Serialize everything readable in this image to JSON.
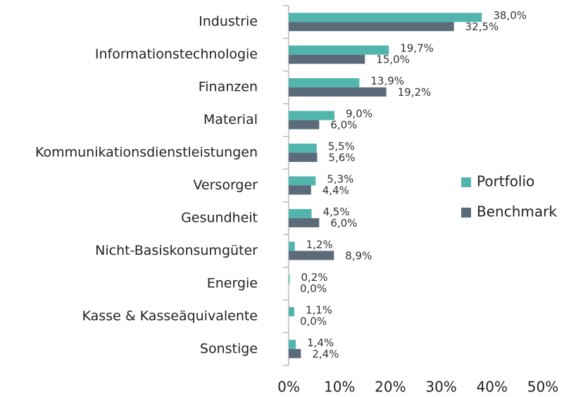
{
  "chart_data": {
    "type": "barh",
    "categories": [
      "Industrie",
      "Informationstechnologie",
      "Finanzen",
      "Material",
      "Kommunikationsdienstleistungen",
      "Versorger",
      "Gesundheit",
      "Nicht-Basiskonsumgüter",
      "Energie",
      "Kasse & Kasseäquivalente",
      "Sonstige"
    ],
    "series": [
      {
        "name": "Portfolio",
        "color": "#52b5ad",
        "values": [
          38.0,
          19.7,
          13.9,
          9.0,
          5.5,
          5.3,
          4.5,
          1.2,
          0.2,
          1.1,
          1.4
        ],
        "value_labels": [
          "38,0%",
          "19,7%",
          "13,9%",
          "9,0%",
          "5,5%",
          "5,3%",
          "4,5%",
          "1,2%",
          "0,2%",
          "1,1%",
          "1,4%"
        ]
      },
      {
        "name": "Benchmark",
        "color": "#5b6b79",
        "values": [
          32.5,
          15.0,
          19.2,
          6.0,
          5.6,
          4.4,
          6.0,
          8.9,
          0.0,
          0.0,
          2.4
        ],
        "value_labels": [
          "32,5%",
          "15,0%",
          "19,2%",
          "6,0%",
          "5,6%",
          "4,4%",
          "6,0%",
          "8,9%",
          "0,0%",
          "0,0%",
          "2,4%"
        ]
      }
    ],
    "xlim": [
      0,
      50
    ],
    "xticks": [
      {
        "value": 0,
        "label": "0%"
      },
      {
        "value": 10,
        "label": "10%"
      },
      {
        "value": 20,
        "label": "20%"
      },
      {
        "value": 30,
        "label": "30%"
      },
      {
        "value": 40,
        "label": "40%"
      },
      {
        "value": 50,
        "label": "50%"
      }
    ],
    "legend": "right"
  }
}
